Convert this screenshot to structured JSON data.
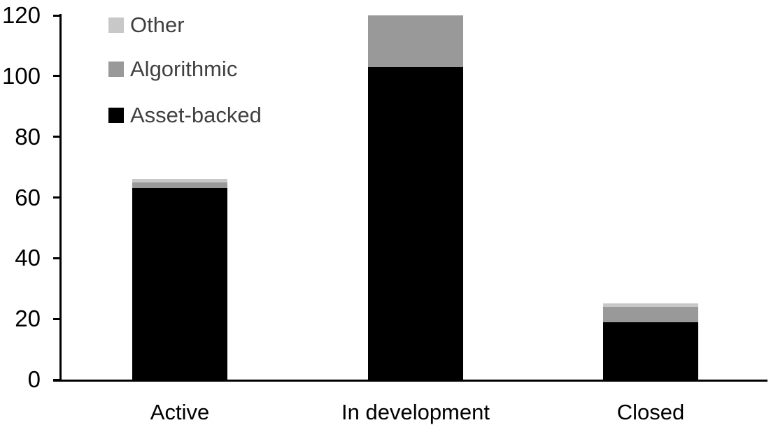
{
  "chart_data": {
    "type": "bar",
    "stacked": true,
    "categories": [
      "Active",
      "In development",
      "Closed"
    ],
    "series": [
      {
        "name": "Asset-backed",
        "color": "#000000",
        "values": [
          63,
          103,
          19
        ]
      },
      {
        "name": "Algorithmic",
        "color": "#999999",
        "values": [
          2,
          17,
          5
        ]
      },
      {
        "name": "Other",
        "color": "#c8c8c8",
        "values": [
          1,
          0,
          1
        ]
      }
    ],
    "legend_order_top_to_bottom": [
      "Other",
      "Algorithmic",
      "Asset-backed"
    ],
    "y_ticks": [
      "0",
      "20",
      "40",
      "60",
      "80",
      "100",
      "120"
    ],
    "ylim": [
      0,
      120
    ],
    "grid": false,
    "legend_position": "top-left",
    "axis_color": "#000000",
    "axis_text_color": "#000000",
    "legend_text_color": "#404040"
  }
}
